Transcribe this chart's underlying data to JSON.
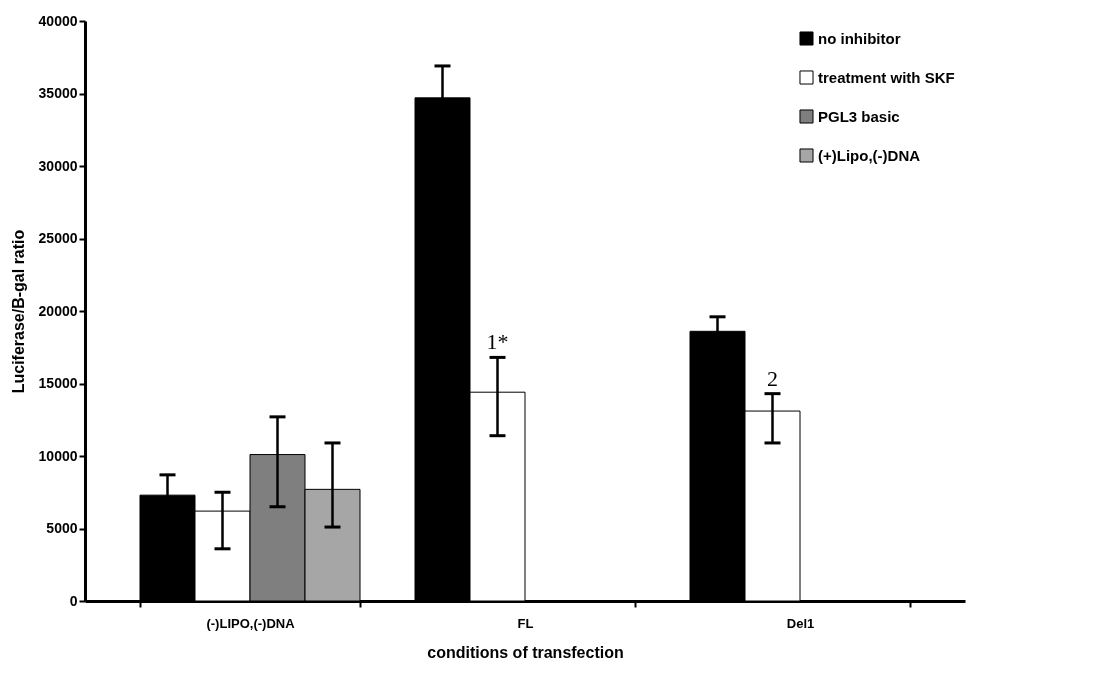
{
  "chart_data": {
    "type": "bar",
    "xlabel": "conditions of transfection",
    "ylabel": "Luciferase/B-gal ratio",
    "categories": [
      "(-)LIPO,(-)DNA",
      "FL",
      "Del1"
    ],
    "series": [
      {
        "name": "no inhibitor",
        "color": "#000000",
        "values": [
          7300,
          34700,
          18600
        ],
        "errors": [
          1400,
          2200,
          1000
        ]
      },
      {
        "name": "treatment with SKF",
        "color": "#ffffff",
        "values": [
          6200,
          14400,
          13100
        ],
        "errors": [
          [
            3600,
            7500
          ],
          [
            11400,
            16800
          ],
          [
            10900,
            14300
          ]
        ]
      },
      {
        "name": "PGL3 basic",
        "color": "#7f7f7f",
        "values": [
          10100,
          null,
          null
        ],
        "errors": [
          [
            6500,
            12700
          ],
          null,
          null
        ]
      },
      {
        "name": "(+)Lipo,(-)DNA",
        "color": "#a6a6a6",
        "values": [
          7700,
          null,
          null
        ],
        "errors": [
          [
            5100,
            10900
          ],
          null,
          null
        ]
      }
    ],
    "ylim": [
      0,
      40000
    ],
    "yticks": [
      0,
      5000,
      10000,
      15000,
      20000,
      25000,
      30000,
      35000,
      40000
    ],
    "grid": false,
    "legend": "top right",
    "annotations": [
      {
        "text": "1*",
        "x": "FL",
        "y": 14400
      },
      {
        "text": "2",
        "x": "Del1",
        "y": 13100
      }
    ]
  }
}
